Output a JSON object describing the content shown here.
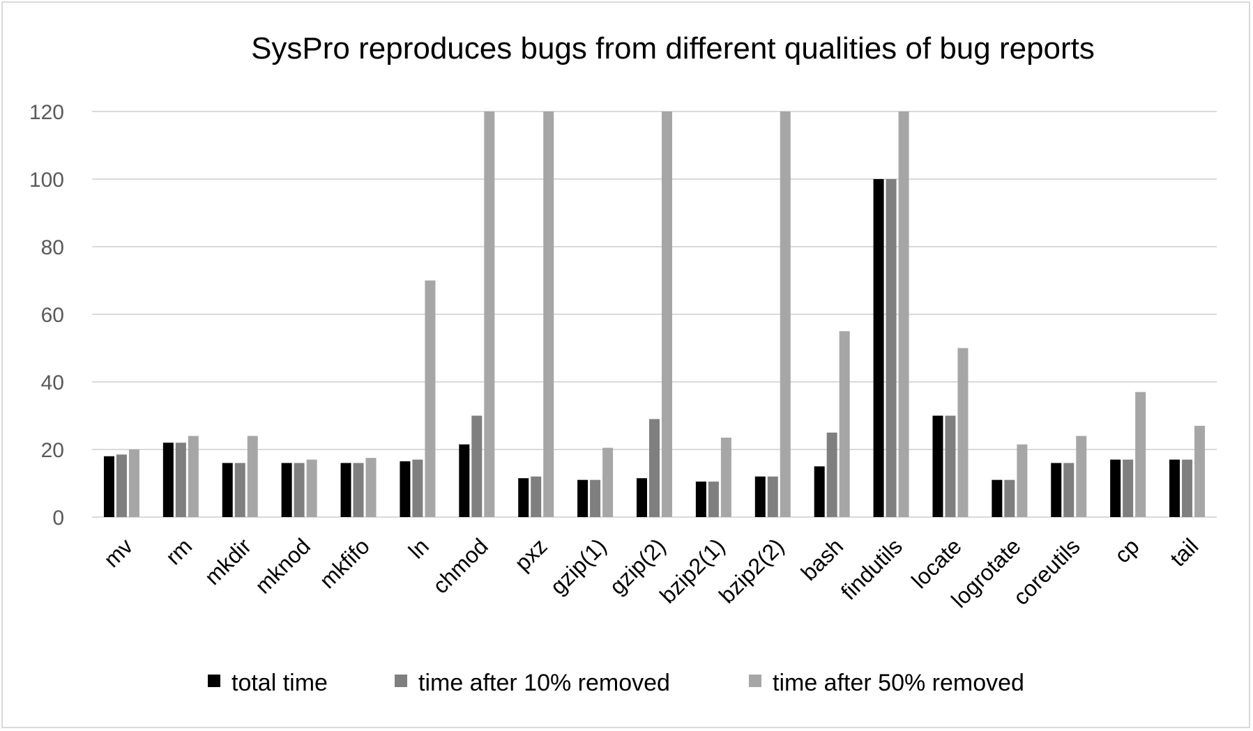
{
  "chart_data": {
    "type": "bar",
    "title": "SysPro reproduces bugs from different qualities of bug reports",
    "xlabel": "",
    "ylabel": "",
    "ylim": [
      0,
      120
    ],
    "yticks": [
      0,
      20,
      40,
      60,
      80,
      100,
      120
    ],
    "grid": true,
    "legend_position": "bottom",
    "categories": [
      "mv",
      "rm",
      "mkdir",
      "mknod",
      "mkfifo",
      "ln",
      "chmod",
      "pxz",
      "gzip(1)",
      "gzip(2)",
      "bzip2(1)",
      "bzip2(2)",
      "bash",
      "findutils",
      "locate",
      "logrotate",
      "coreutils",
      "cp",
      "tail"
    ],
    "series": [
      {
        "name": "total time",
        "color": "#000000",
        "values": [
          18,
          22,
          16,
          16,
          16,
          16.5,
          21.5,
          11.5,
          11,
          11.5,
          10.5,
          12,
          15,
          100,
          30,
          11,
          16,
          17,
          17
        ]
      },
      {
        "name": "time after 10% removed",
        "color": "#7f7f7f",
        "values": [
          18.5,
          22,
          16,
          16,
          16,
          17,
          30,
          12,
          11,
          29,
          10.5,
          12,
          25,
          100,
          30,
          11,
          16,
          17,
          17
        ]
      },
      {
        "name": "time after 50% removed",
        "color": "#a6a6a6",
        "values": [
          20,
          24,
          24,
          17,
          17.5,
          70,
          120,
          120,
          20.5,
          120,
          23.5,
          120,
          55,
          120,
          50,
          21.5,
          24,
          37,
          27
        ]
      }
    ]
  }
}
